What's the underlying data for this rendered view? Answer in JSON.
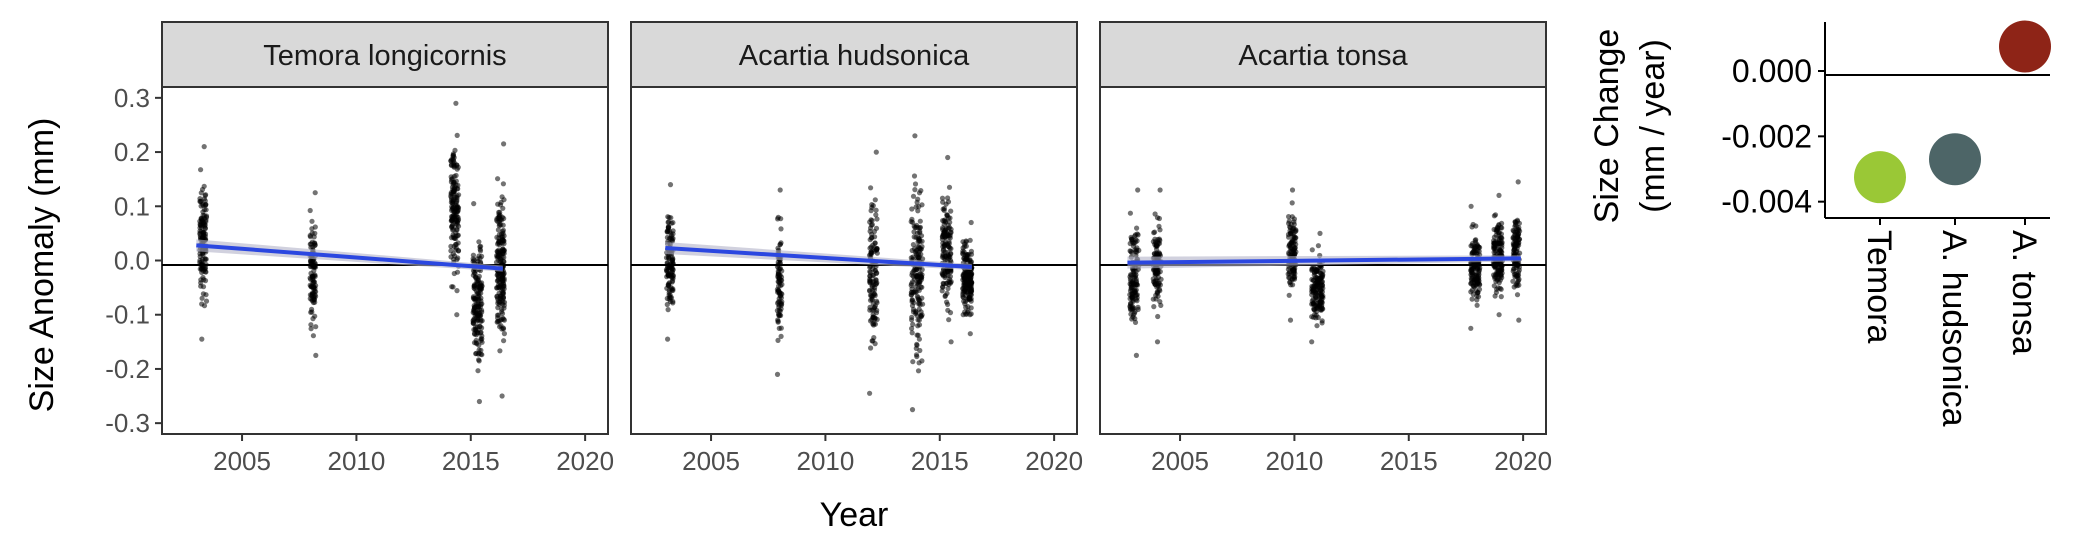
{
  "chart_data": [
    {
      "type": "scatter",
      "xlabel": "Year",
      "ylabel": "Size Anomaly (mm)",
      "x_ticks": [
        "2005",
        "2010",
        "2015",
        "2020"
      ],
      "y_ticks": [
        "0.3",
        "0.2",
        "0.1",
        "0.0",
        "-0.1",
        "-0.2",
        "-0.3"
      ],
      "xlim": [
        2001.5,
        2021
      ],
      "ylim": [
        -0.32,
        0.32
      ],
      "hline": 0,
      "colors": {
        "points": "#000000",
        "trend": "#2b47e0",
        "ribbon": "#b3b3c8",
        "strip": "#d9d9d9"
      },
      "panels": [
        {
          "strip": "Temora longicornis",
          "clusters": [
            {
              "x": 2003.3,
              "spread": 0.3,
              "ymin": -0.145,
              "ymax": 0.21,
              "n": 140
            },
            {
              "x": 2008.1,
              "spread": 0.25,
              "ymin": -0.175,
              "ymax": 0.125,
              "n": 110
            },
            {
              "x": 2014.3,
              "spread": 0.35,
              "ymin": -0.1,
              "ymax": 0.29,
              "n": 160
            },
            {
              "x": 2015.3,
              "spread": 0.4,
              "ymin": -0.26,
              "ymax": 0.105,
              "n": 170
            },
            {
              "x": 2016.3,
              "spread": 0.35,
              "ymin": -0.25,
              "ymax": 0.215,
              "n": 200
            }
          ],
          "trend": {
            "x": [
              2003.0,
              2016.4
            ],
            "y": [
              0.028,
              -0.015
            ]
          }
        },
        {
          "strip": "Acartia hudsonica",
          "clusters": [
            {
              "x": 2003.2,
              "spread": 0.3,
              "ymin": -0.145,
              "ymax": 0.14,
              "n": 120
            },
            {
              "x": 2008.0,
              "spread": 0.2,
              "ymin": -0.21,
              "ymax": 0.13,
              "n": 90
            },
            {
              "x": 2012.1,
              "spread": 0.35,
              "ymin": -0.245,
              "ymax": 0.2,
              "n": 130
            },
            {
              "x": 2014.0,
              "spread": 0.5,
              "ymin": -0.275,
              "ymax": 0.23,
              "n": 180
            },
            {
              "x": 2015.3,
              "spread": 0.4,
              "ymin": -0.15,
              "ymax": 0.19,
              "n": 150
            },
            {
              "x": 2016.2,
              "spread": 0.4,
              "ymin": -0.135,
              "ymax": 0.07,
              "n": 180
            }
          ],
          "trend": {
            "x": [
              2003.0,
              2016.4
            ],
            "y": [
              0.023,
              -0.012
            ]
          }
        },
        {
          "strip": "Acartia tonsa",
          "clusters": [
            {
              "x": 2003.0,
              "spread": 0.4,
              "ymin": -0.175,
              "ymax": 0.13,
              "n": 130
            },
            {
              "x": 2004.0,
              "spread": 0.35,
              "ymin": -0.15,
              "ymax": 0.13,
              "n": 110
            },
            {
              "x": 2009.9,
              "spread": 0.35,
              "ymin": -0.11,
              "ymax": 0.13,
              "n": 120
            },
            {
              "x": 2011.0,
              "spread": 0.5,
              "ymin": -0.15,
              "ymax": 0.05,
              "n": 160
            },
            {
              "x": 2017.9,
              "spread": 0.4,
              "ymin": -0.125,
              "ymax": 0.1,
              "n": 140
            },
            {
              "x": 2018.9,
              "spread": 0.4,
              "ymin": -0.1,
              "ymax": 0.12,
              "n": 150
            },
            {
              "x": 2019.7,
              "spread": 0.3,
              "ymin": -0.11,
              "ymax": 0.145,
              "n": 120
            }
          ],
          "trend": {
            "x": [
              2002.7,
              2019.9
            ],
            "y": [
              -0.004,
              0.004
            ]
          }
        }
      ]
    },
    {
      "type": "scatter",
      "ylabel_line1": "Size Change",
      "ylabel_line2": "(mm / year)",
      "y_ticks": [
        "0.000",
        "-0.002",
        "-0.004"
      ],
      "ylim": [
        -0.0045,
        0.0015
      ],
      "hline": 0,
      "categories": [
        "Temora",
        "A. hudsonica",
        "A. tonsa"
      ],
      "values": [
        -0.00325,
        -0.0027,
        0.00075
      ],
      "errors": [
        0.0004,
        0.0004,
        0.0002
      ],
      "colors": [
        "#9ac836",
        "#4d6567",
        "#8e2417"
      ]
    }
  ]
}
